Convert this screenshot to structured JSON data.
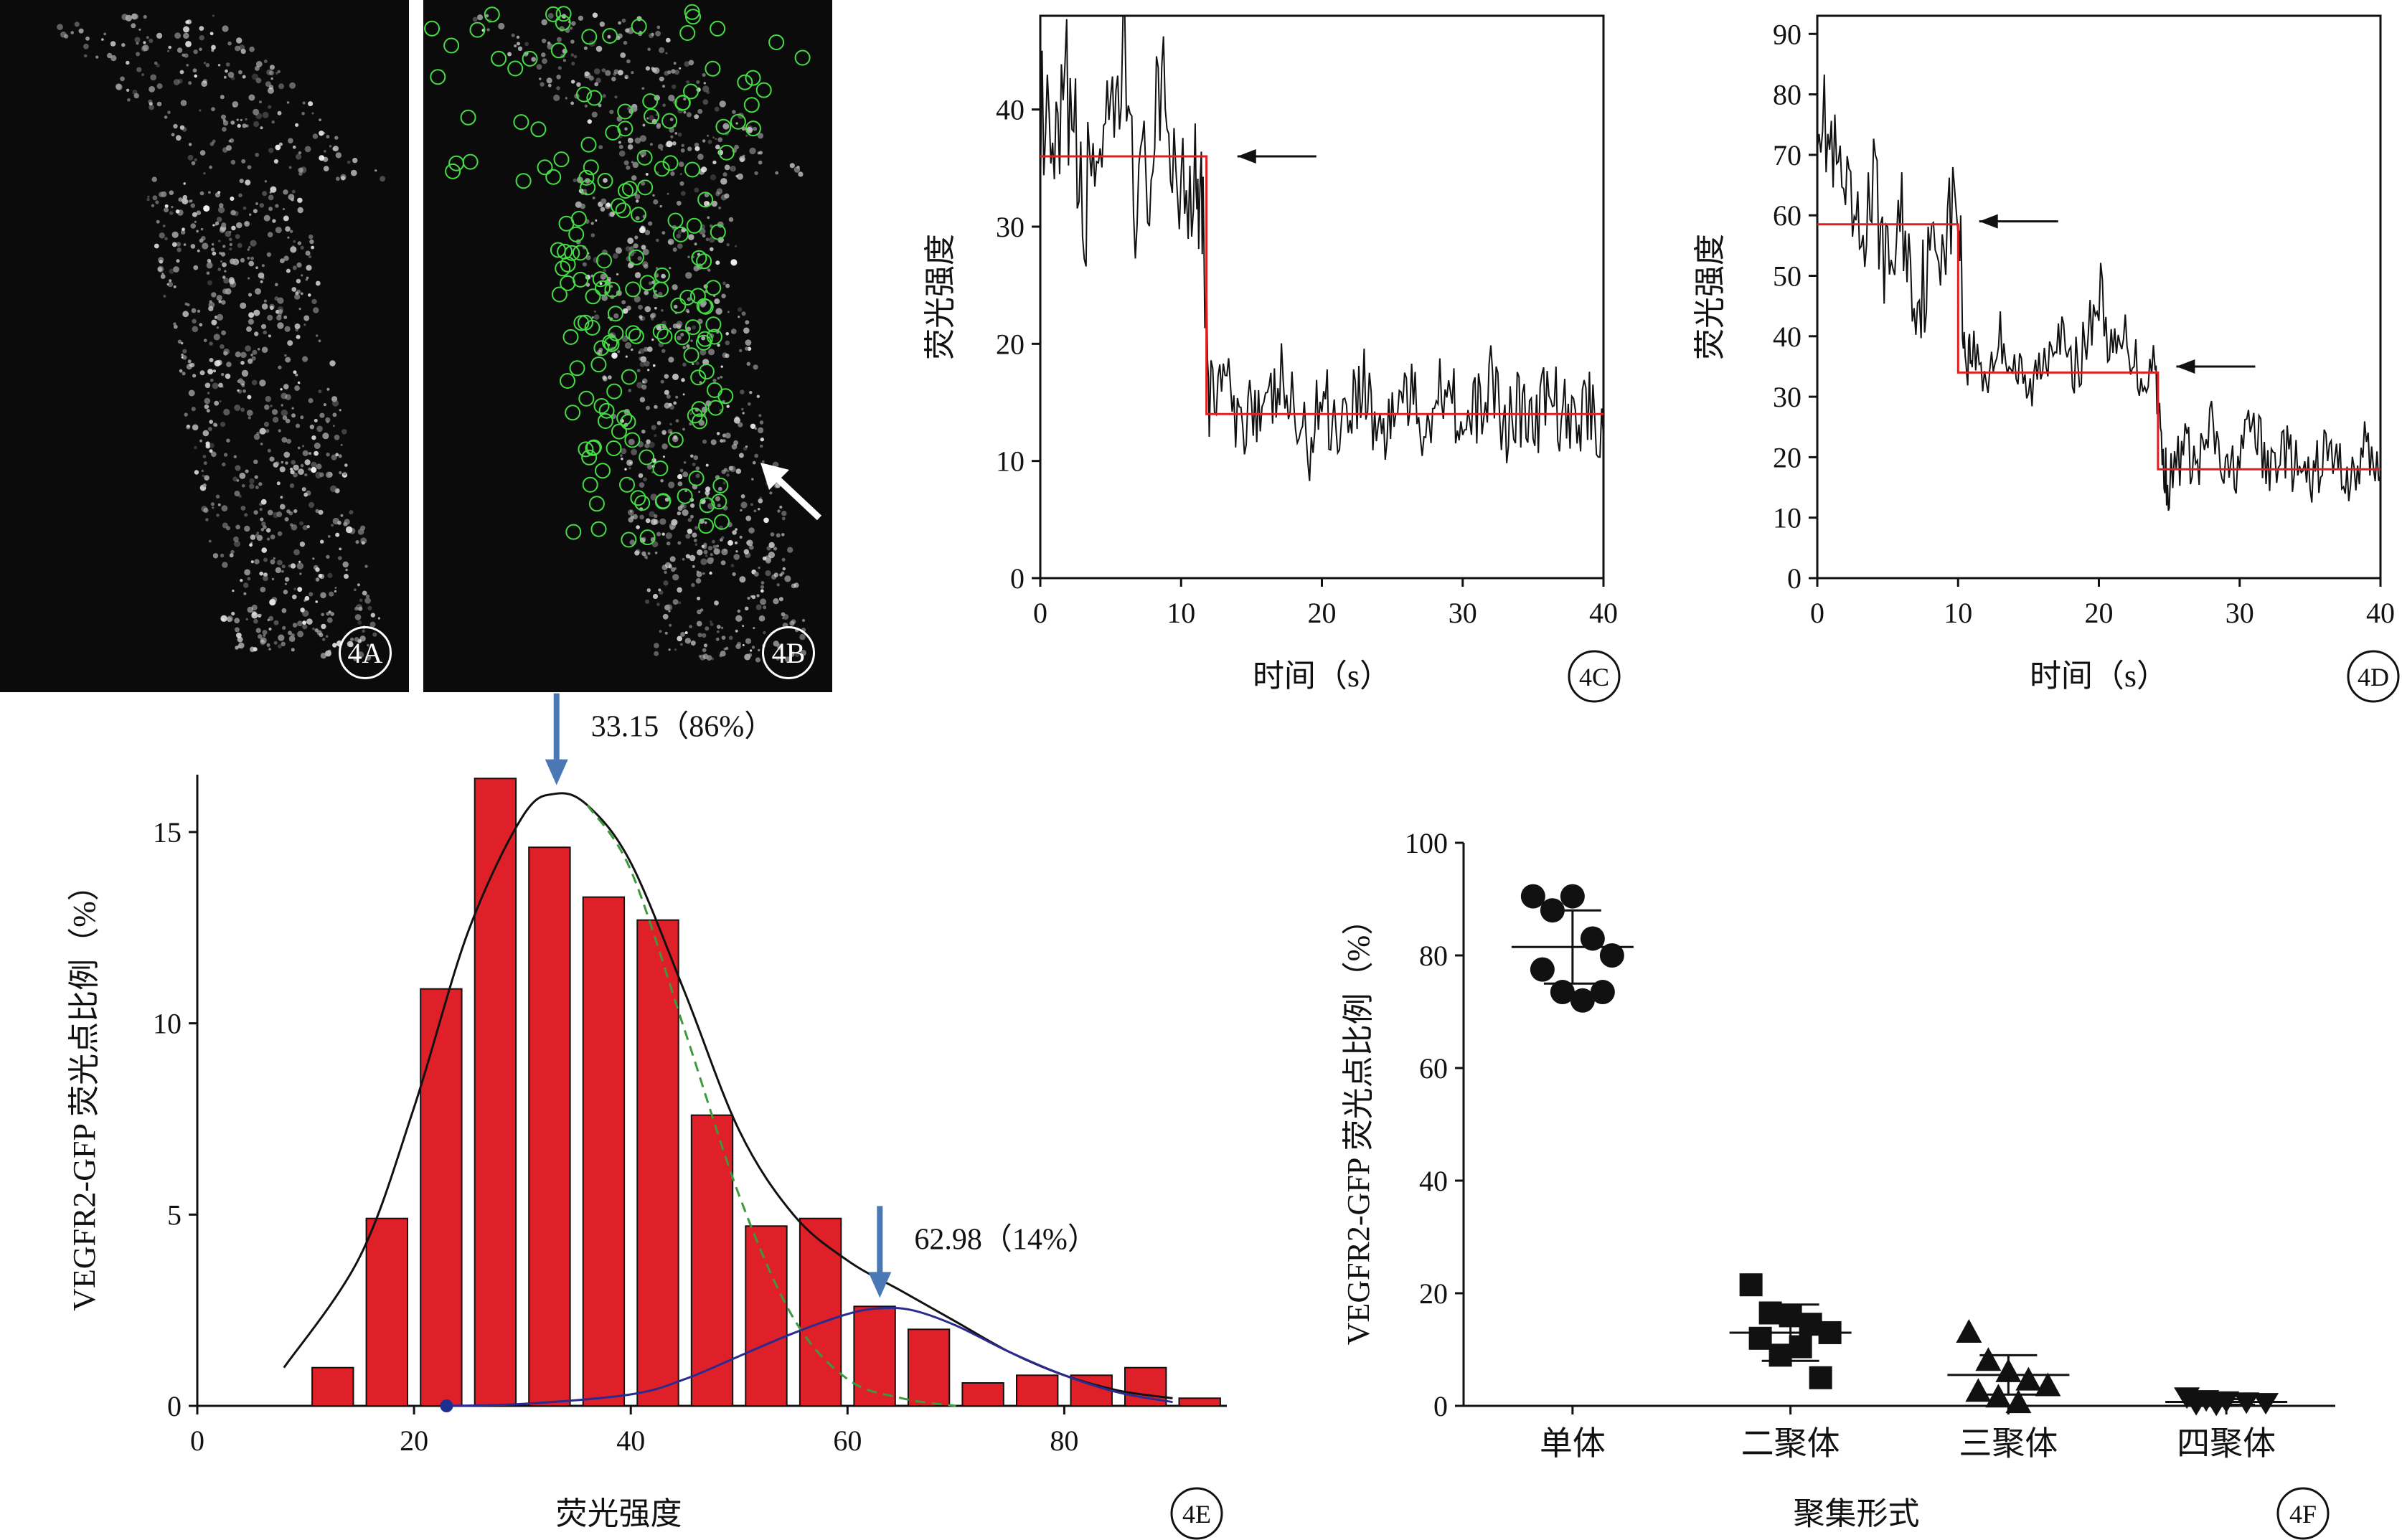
{
  "panels": {
    "a": {
      "label": "4A"
    },
    "b": {
      "label": "4B"
    }
  },
  "chart_data": [
    {
      "id": "4C",
      "type": "line",
      "panel_label": "4C",
      "xlabel": "时间（s）",
      "ylabel": "荧光强度",
      "xlim": [
        0,
        40
      ],
      "ylim": [
        0,
        48
      ],
      "xticks": [
        0,
        10,
        20,
        30,
        40
      ],
      "yticks": [
        0,
        10,
        20,
        30,
        40
      ],
      "series": [
        {
          "role": "trace",
          "color": "#111111",
          "x": [
            0,
            1,
            2,
            3,
            4,
            5,
            6,
            7,
            8,
            9,
            10,
            11,
            11.5,
            12,
            13,
            14,
            15,
            16,
            17,
            18,
            19,
            20,
            21,
            22,
            23,
            24,
            25,
            26,
            27,
            28,
            29,
            30,
            31,
            32,
            33,
            34,
            35,
            36,
            37,
            38,
            39,
            40
          ],
          "y": [
            39,
            33,
            42,
            30,
            38,
            35,
            44,
            31,
            37,
            40,
            33,
            36,
            34,
            15,
            18,
            12,
            16,
            13,
            17,
            14,
            11,
            16,
            13,
            15,
            17,
            12,
            14,
            16,
            13,
            15,
            18,
            12,
            14,
            17,
            13,
            15,
            12,
            16,
            14,
            13,
            15,
            12
          ]
        },
        {
          "role": "step fit",
          "color": "#e02020",
          "x": [
            0,
            11.8,
            11.8,
            40
          ],
          "y": [
            36,
            36,
            14,
            14
          ]
        }
      ],
      "annotations": [
        {
          "type": "arrow",
          "direction": "left",
          "x": 14,
          "y": 36
        }
      ]
    },
    {
      "id": "4D",
      "type": "line",
      "panel_label": "4D",
      "xlabel": "时间（s）",
      "ylabel": "荧光强度",
      "xlim": [
        0,
        40
      ],
      "ylim": [
        0,
        93
      ],
      "xticks": [
        0,
        10,
        20,
        30,
        40
      ],
      "yticks": [
        0,
        10,
        20,
        30,
        40,
        50,
        60,
        70,
        80,
        90
      ],
      "series": [
        {
          "role": "trace",
          "color": "#111111",
          "x": [
            0,
            1,
            2,
            3,
            4,
            5,
            6,
            7,
            8,
            9,
            10,
            10.5,
            11,
            12,
            13,
            14,
            15,
            16,
            17,
            18,
            19,
            20,
            21,
            22,
            23,
            24,
            24.5,
            25,
            26,
            27,
            28,
            29,
            30,
            31,
            32,
            33,
            34,
            35,
            36,
            37,
            38,
            39,
            40
          ],
          "y": [
            80,
            70,
            62,
            55,
            65,
            50,
            60,
            45,
            52,
            58,
            62,
            36,
            38,
            33,
            40,
            35,
            30,
            36,
            42,
            34,
            38,
            48,
            36,
            40,
            33,
            36,
            20,
            15,
            22,
            18,
            25,
            16,
            20,
            26,
            17,
            22,
            18,
            15,
            21,
            19,
            16,
            22,
            17
          ]
        },
        {
          "role": "step fit",
          "color": "#e02020",
          "x": [
            0,
            10,
            10,
            24.2,
            24.2,
            40
          ],
          "y": [
            58.5,
            58.5,
            34,
            34,
            18,
            18
          ]
        }
      ],
      "annotations": [
        {
          "type": "arrow",
          "direction": "left",
          "x": 11.5,
          "y": 59
        },
        {
          "type": "arrow",
          "direction": "left",
          "x": 25.5,
          "y": 35
        }
      ]
    },
    {
      "id": "4E",
      "type": "bar",
      "panel_label": "4E",
      "xlabel": "荧光强度",
      "ylabel": "VEGFR2-GFP 荧光点比例（%）",
      "xlim": [
        0,
        95
      ],
      "ylim": [
        0,
        16.5
      ],
      "xticks": [
        0,
        20,
        40,
        60,
        80
      ],
      "yticks": [
        0,
        5,
        10,
        15
      ],
      "bins": [
        {
          "x": 12.5,
          "value": 1.0
        },
        {
          "x": 17.5,
          "value": 4.9
        },
        {
          "x": 22.5,
          "value": 10.9
        },
        {
          "x": 27.5,
          "value": 16.4
        },
        {
          "x": 32.5,
          "value": 14.6
        },
        {
          "x": 37.5,
          "value": 13.3
        },
        {
          "x": 42.5,
          "value": 12.7
        },
        {
          "x": 47.5,
          "value": 7.6
        },
        {
          "x": 52.5,
          "value": 4.7
        },
        {
          "x": 57.5,
          "value": 4.9
        },
        {
          "x": 62.5,
          "value": 2.6
        },
        {
          "x": 67.5,
          "value": 2.0
        },
        {
          "x": 72.5,
          "value": 0.6
        },
        {
          "x": 77.5,
          "value": 0.8
        },
        {
          "x": 82.5,
          "value": 0.8
        },
        {
          "x": 87.5,
          "value": 1.0
        },
        {
          "x": 92.5,
          "value": 0.2
        }
      ],
      "bin_width": 5,
      "fits": [
        {
          "role": "sum fit",
          "color": "#111111",
          "dash": false,
          "x": [
            8,
            15,
            20,
            25,
            30,
            33,
            36,
            40,
            45,
            50,
            55,
            60,
            65,
            70,
            75,
            80,
            85,
            90
          ],
          "y": [
            1.0,
            3.9,
            7.8,
            12.4,
            15.4,
            16.0,
            15.7,
            14.2,
            10.8,
            7.2,
            5.0,
            3.8,
            3.0,
            2.2,
            1.4,
            0.8,
            0.4,
            0.2
          ]
        },
        {
          "role": "component 1",
          "color": "#3c9a3c",
          "dash": true,
          "x": [
            36,
            40,
            45,
            50,
            55,
            60,
            65,
            70
          ],
          "y": [
            15.7,
            14.0,
            9.8,
            5.5,
            2.3,
            0.7,
            0.2,
            0.0
          ]
        },
        {
          "role": "component 2",
          "color": "#2b2b8f",
          "dash": false,
          "x": [
            23,
            30,
            40,
            45,
            50,
            55,
            60,
            63,
            66,
            70,
            75,
            80,
            85,
            90
          ],
          "y": [
            0.0,
            0.05,
            0.3,
            0.7,
            1.3,
            1.9,
            2.4,
            2.55,
            2.5,
            2.1,
            1.4,
            0.8,
            0.35,
            0.1
          ]
        }
      ],
      "marker_point": {
        "x": 23,
        "y": 0,
        "color": "#1f2f8f"
      },
      "peaks": [
        {
          "x": 33.15,
          "y": 16.0,
          "label": "33.15（86%）",
          "color": "#4a78b4"
        },
        {
          "x": 62.98,
          "y": 2.6,
          "label": "62.98（14%）",
          "color": "#4a78b4"
        }
      ]
    },
    {
      "id": "4F",
      "type": "scatter",
      "panel_label": "4F",
      "xlabel": "聚集形式",
      "ylabel": "VEGFR2-GFP 荧光点比例（%）",
      "ylim": [
        0,
        100
      ],
      "yticks": [
        0,
        20,
        40,
        60,
        80,
        100
      ],
      "categories": [
        {
          "label": "单体",
          "marker": "circle",
          "mean": 81.5,
          "sd": 6.5,
          "values": [
            90.5,
            88.0,
            90.5,
            83.0,
            80.0,
            77.5,
            73.5,
            72.0,
            73.5
          ]
        },
        {
          "label": "二聚体",
          "marker": "square",
          "mean": 13.0,
          "sd": 5.0,
          "values": [
            21.5,
            16.5,
            16.0,
            14.5,
            13.0,
            12.0,
            9.0,
            10.5,
            5.0
          ]
        },
        {
          "label": "三聚体",
          "marker": "triangle",
          "mean": 5.5,
          "sd": 3.5,
          "values": [
            13.0,
            8.0,
            6.0,
            4.5,
            3.5,
            2.5,
            1.5,
            0.5
          ]
        },
        {
          "label": "四聚体",
          "marker": "triangle-down",
          "mean": 0.7,
          "sd": 0.5,
          "values": [
            1.5,
            1.0,
            0.8,
            0.6,
            0.5,
            0.3,
            0.2
          ]
        }
      ]
    }
  ]
}
